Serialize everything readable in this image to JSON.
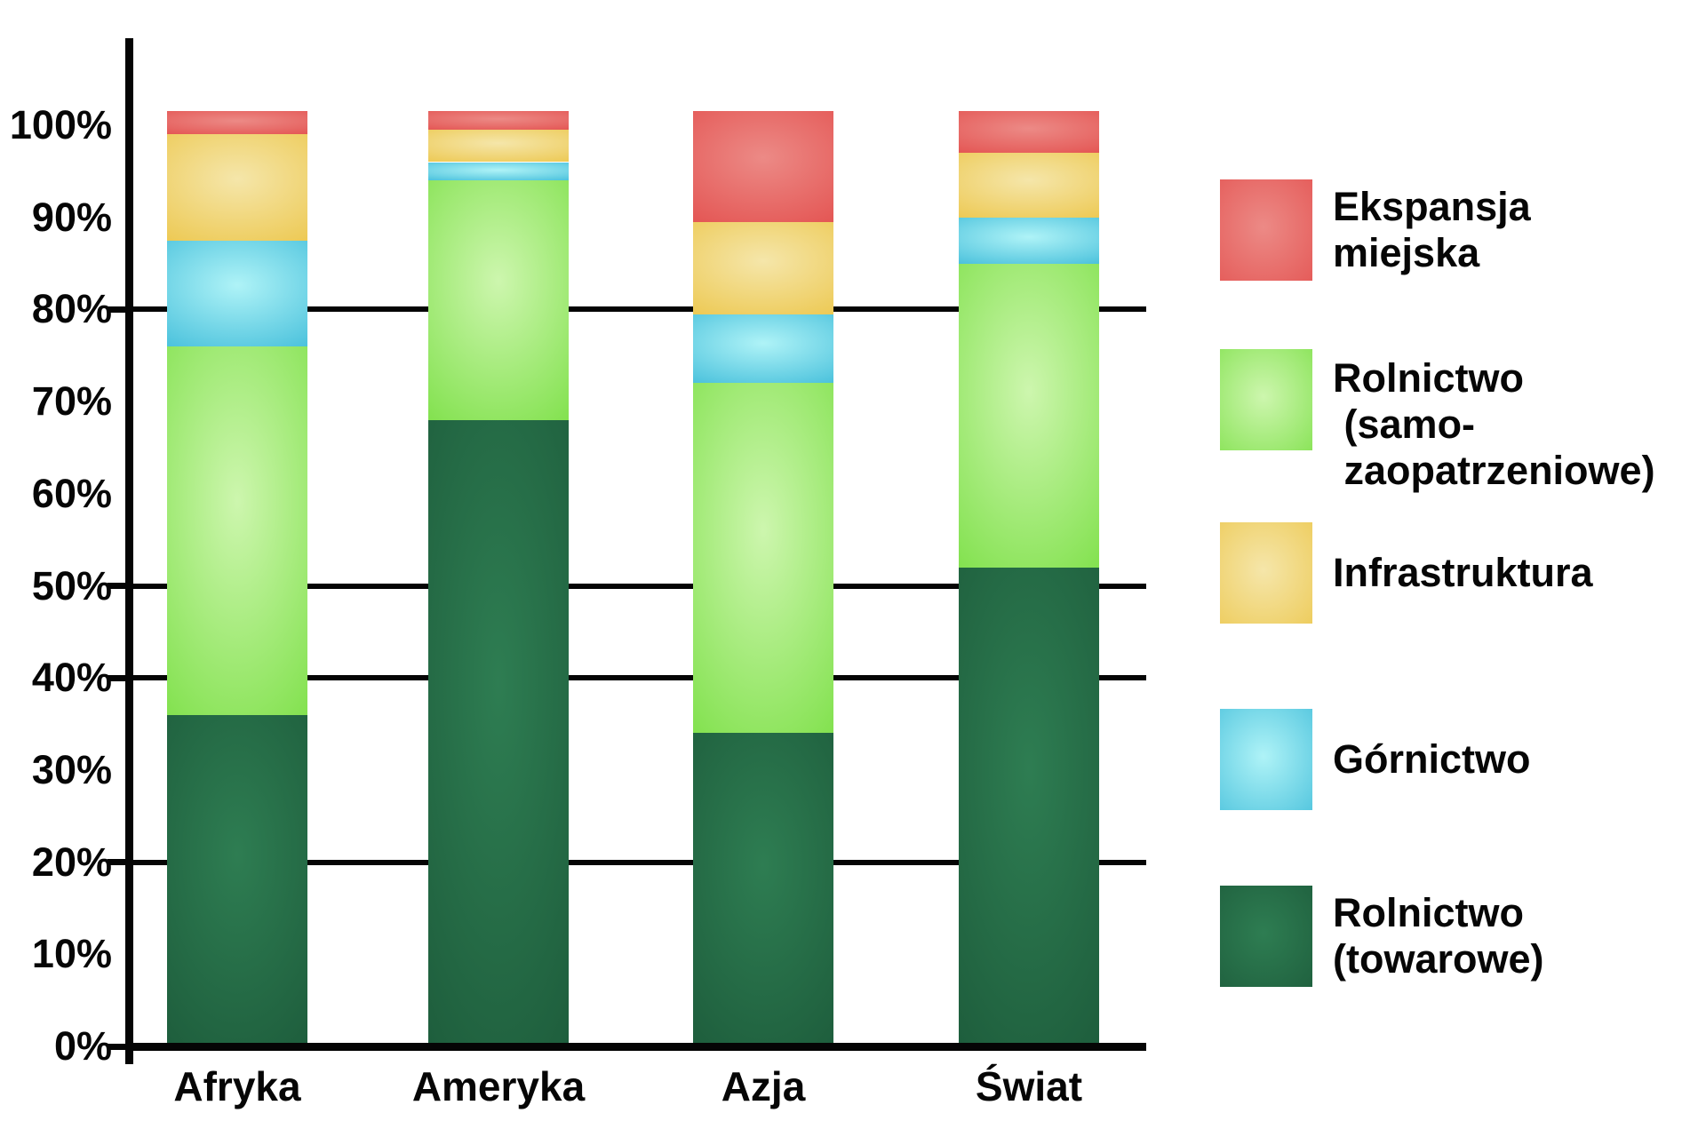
{
  "chart_data": {
    "type": "bar",
    "stacked": true,
    "title": "",
    "categories": [
      "Afryka",
      "Ameryka",
      "Azja",
      "Świat"
    ],
    "series": [
      {
        "name": "Rolnictwo (towarowe)",
        "color_base": "#1C5A3A",
        "color_light": "#2E7D52",
        "values": [
          36,
          68,
          34,
          52
        ]
      },
      {
        "name": "Rolnictwo (samozaopatrzeniowe)",
        "color_base": "#7ADF44",
        "color_light": "#CDF6AE",
        "values": [
          40,
          26,
          38,
          33
        ]
      },
      {
        "name": "Górnictwo",
        "color_base": "#3FBCD9",
        "color_light": "#AFF3F7",
        "values": [
          11.5,
          2,
          7.5,
          5
        ]
      },
      {
        "name": "Infrastruktura",
        "color_base": "#ECC64A",
        "color_light": "#F5E6AA",
        "values": [
          11.5,
          3.5,
          10,
          7
        ]
      },
      {
        "name": "Ekspansja miejska",
        "color_base": "#E3504E",
        "color_light": "#EC8A86",
        "values": [
          2.5,
          2,
          12,
          4.5
        ]
      }
    ],
    "xlabel": "",
    "ylabel": "",
    "ylim": [
      0,
      100
    ],
    "ytick_labels": [
      "0%",
      "10%",
      "20%",
      "30%",
      "40%",
      "50%",
      "60%",
      "70%",
      "80%",
      "90%",
      "100%"
    ],
    "gridline_values": [
      80,
      50,
      40,
      20
    ],
    "axis_tick_values": [
      80,
      50,
      40,
      20,
      0
    ],
    "legend_position": "right",
    "legend": [
      {
        "series": "Ekspansja miejska",
        "label_lines": [
          "Ekspansja",
          "miejska"
        ]
      },
      {
        "series": "Rolnictwo (samozaopatrzeniowe)",
        "label_lines": [
          "Rolnictwo",
          " (samo-",
          " zaopatrzeniowe)"
        ]
      },
      {
        "series": "Infrastruktura",
        "label_lines": [
          "Infrastruktura"
        ]
      },
      {
        "series": "Górnictwo",
        "label_lines": [
          "Górnictwo"
        ]
      },
      {
        "series": "Rolnictwo (towarowe)",
        "label_lines": [
          "Rolnictwo",
          "(towarowe)"
        ]
      }
    ],
    "layout_hints": {
      "grid": "partial-horizontal",
      "bars_drawn_to_pct": 101.5,
      "axis_color": "#050505",
      "background": "#FFFFFF"
    }
  }
}
